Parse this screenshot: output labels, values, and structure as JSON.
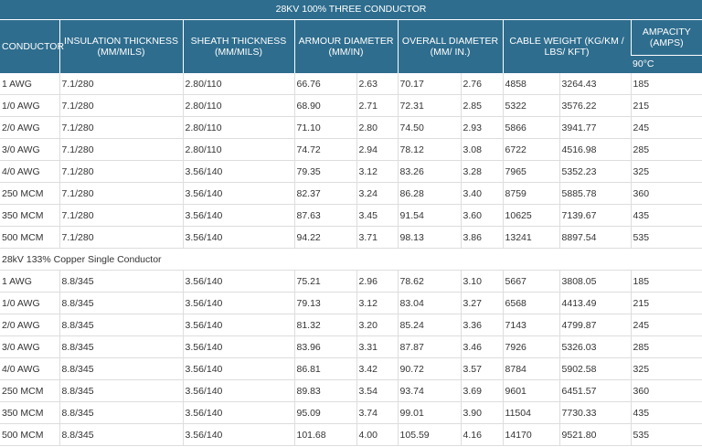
{
  "title": "28KV 100% THREE CONDUCTOR",
  "header": {
    "columns": [
      "CONDUCTOR",
      "INSULATION THICKNESS (MM/MILS)",
      "SHEATH THICKNESS (MM/MILS)",
      "ARMOUR DIAMETER (MM/IN)",
      "OVERALL DIAMETER (MM/ IN.)",
      "CABLE WEIGHT (KG/KM / LBS/ KFT)",
      "AMPACITY (AMPS)"
    ],
    "ampacity_unit": "90°C"
  },
  "sections": [
    {
      "rows": [
        [
          "1 AWG",
          "7.1/280",
          "2.80/110",
          "66.76",
          "2.63",
          "70.17",
          "2.76",
          "4858",
          "3264.43",
          "185"
        ],
        [
          "1/0 AWG",
          "7.1/280",
          "2.80/110",
          "68.90",
          "2.71",
          "72.31",
          "2.85",
          "5322",
          "3576.22",
          "215"
        ],
        [
          "2/0 AWG",
          "7.1/280",
          "2.80/110",
          "71.10",
          "2.80",
          "74.50",
          "2.93",
          "5866",
          "3941.77",
          "245"
        ],
        [
          "3/0 AWG",
          "7.1/280",
          "2.80/110",
          "74.72",
          "2.94",
          "78.12",
          "3.08",
          "6722",
          "4516.98",
          "285"
        ],
        [
          "4/0 AWG",
          "7.1/280",
          "3.56/140",
          "79.35",
          "3.12",
          "83.26",
          "3.28",
          "7965",
          "5352.23",
          "325"
        ],
        [
          "250 MCM",
          "7.1/280",
          "3.56/140",
          "82.37",
          "3.24",
          "86.28",
          "3.40",
          "8759",
          "5885.78",
          "360"
        ],
        [
          "350 MCM",
          "7.1/280",
          "3.56/140",
          "87.63",
          "3.45",
          "91.54",
          "3.60",
          "10625",
          "7139.67",
          "435"
        ],
        [
          "500 MCM",
          "7.1/280",
          "3.56/140",
          "94.22",
          "3.71",
          "98.13",
          "3.86",
          "13241",
          "8897.54",
          "535"
        ]
      ]
    },
    {
      "label": "28kV 133% Copper Single Conductor",
      "rows": [
        [
          "1 AWG",
          "8.8/345",
          "3.56/140",
          "75.21",
          "2.96",
          "78.62",
          "3.10",
          "5667",
          "3808.05",
          "185"
        ],
        [
          "1/0 AWG",
          "8.8/345",
          "3.56/140",
          "79.13",
          "3.12",
          "83.04",
          "3.27",
          "6568",
          "4413.49",
          "215"
        ],
        [
          "2/0 AWG",
          "8.8/345",
          "3.56/140",
          "81.32",
          "3.20",
          "85.24",
          "3.36",
          "7143",
          "4799.87",
          "245"
        ],
        [
          "3/0 AWG",
          "8.8/345",
          "3.56/140",
          "83.96",
          "3.31",
          "87.87",
          "3.46",
          "7926",
          "5326.03",
          "285"
        ],
        [
          "4/0 AWG",
          "8.8/345",
          "3.56/140",
          "86.81",
          "3.42",
          "90.72",
          "3.57",
          "8784",
          "5902.58",
          "325"
        ],
        [
          "250 MCM",
          "8.8/345",
          "3.56/140",
          "89.83",
          "3.54",
          "93.74",
          "3.69",
          "9601",
          "6451.57",
          "360"
        ],
        [
          "350 MCM",
          "8.8/345",
          "3.56/140",
          "95.09",
          "3.74",
          "99.01",
          "3.90",
          "11504",
          "7730.33",
          "435"
        ],
        [
          "500 MCM",
          "8.8/345",
          "3.56/140",
          "101.68",
          "4.00",
          "105.59",
          "4.16",
          "14170",
          "9521.80",
          "535"
        ]
      ]
    }
  ]
}
